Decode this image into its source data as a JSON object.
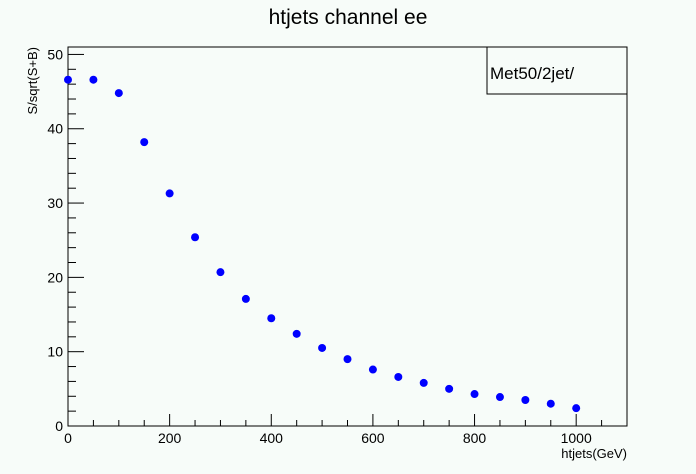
{
  "chart_data": {
    "type": "scatter",
    "title": "htjets channel  ee",
    "xlabel": "htjets(GeV)",
    "ylabel": "S/sqrt(S+B)",
    "legend_text": "Met50/2jet/",
    "legend_position": "top-right",
    "xlim": [
      0,
      1100
    ],
    "ylim": [
      0,
      51
    ],
    "x_ticks": [
      0,
      200,
      400,
      600,
      800,
      1000
    ],
    "y_ticks": [
      0,
      10,
      20,
      30,
      40,
      50
    ],
    "grid": false,
    "marker_color": "#0000ff",
    "x": [
      0,
      50,
      100,
      150,
      200,
      250,
      300,
      350,
      400,
      450,
      500,
      550,
      600,
      650,
      700,
      750,
      800,
      850,
      900,
      950,
      1000
    ],
    "y": [
      46.6,
      46.6,
      44.8,
      38.2,
      31.3,
      25.4,
      20.7,
      17.1,
      14.5,
      12.4,
      10.5,
      9.0,
      7.6,
      6.6,
      5.8,
      5.0,
      4.3,
      3.9,
      3.5,
      3.0,
      2.4
    ]
  }
}
